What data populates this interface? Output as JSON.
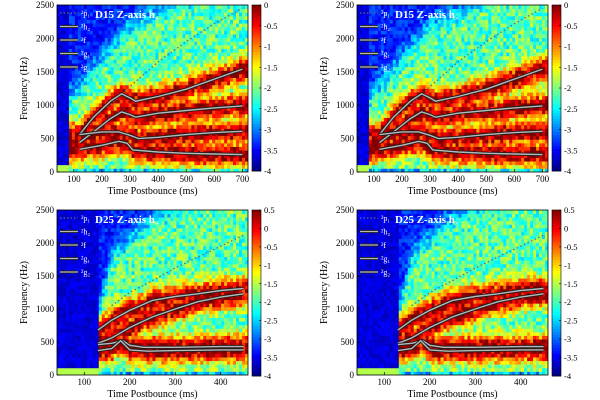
{
  "chart_data": [
    {
      "type": "heatmap",
      "title": "D15 Z-axis h",
      "title_marker": "+",
      "xlabel": "Time Postbounce (ms)",
      "ylabel": "Frequency (Hz)",
      "xlim": [
        40,
        720
      ],
      "ylim": [
        0,
        2500
      ],
      "xticks": [
        100,
        200,
        300,
        400,
        500,
        600,
        700
      ],
      "yticks": [
        0,
        500,
        1000,
        1500,
        2000,
        2500
      ],
      "colorbar": {
        "range": [
          -4,
          0
        ],
        "ticks": [
          0,
          -0.5,
          -1,
          -1.5,
          -2,
          -2.5,
          -3,
          -3.5,
          -4
        ]
      },
      "legend": [
        "²p₁",
        "²h₂",
        "²f",
        "²g₁",
        "²g₂"
      ],
      "series": [
        {
          "legend": 0,
          "color": "#6b6b6b",
          "style": "dotted",
          "x": [
            230,
            300,
            400,
            500,
            600,
            700
          ],
          "y": [
            1000,
            1280,
            1650,
            1950,
            2220,
            2450
          ]
        },
        {
          "legend": 1,
          "color": "#b8b8b8",
          "style": "solid",
          "x": [
            120,
            170,
            230,
            270,
            300,
            320,
            400,
            500,
            600,
            700
          ],
          "y": [
            560,
            820,
            1060,
            1170,
            1110,
            1060,
            1130,
            1240,
            1390,
            1540
          ]
        },
        {
          "legend": 2,
          "color": "#b8b8b8",
          "style": "solid",
          "x": [
            120,
            170,
            230,
            270,
            300,
            320,
            400,
            500,
            600,
            700
          ],
          "y": [
            440,
            600,
            800,
            900,
            860,
            820,
            880,
            920,
            960,
            990
          ]
        },
        {
          "legend": 3,
          "color": "#b8b8b8",
          "style": "solid",
          "x": [
            120,
            200,
            260,
            300,
            330,
            400,
            500,
            600,
            700
          ],
          "y": [
            560,
            600,
            600,
            550,
            500,
            520,
            560,
            590,
            610
          ]
        },
        {
          "legend": 4,
          "color": "#b8b8b8",
          "style": "solid",
          "x": [
            120,
            200,
            260,
            290,
            310,
            400,
            500,
            600,
            700
          ],
          "y": [
            340,
            400,
            460,
            430,
            330,
            300,
            280,
            270,
            260
          ]
        }
      ]
    },
    {
      "type": "heatmap",
      "title": "D15 Z-axis h",
      "title_marker": "×",
      "xlabel": "Time Postbounce (ms)",
      "ylabel": "Frequency (Hz)",
      "xlim": [
        40,
        720
      ],
      "ylim": [
        0,
        2500
      ],
      "xticks": [
        100,
        200,
        300,
        400,
        500,
        600,
        700
      ],
      "yticks": [
        0,
        500,
        1000,
        1500,
        2000,
        2500
      ],
      "colorbar": {
        "range": [
          -4,
          0
        ],
        "ticks": [
          0,
          -0.5,
          -1,
          -1.5,
          -2,
          -2.5,
          -3,
          -3.5,
          -4
        ]
      },
      "legend": [
        "²p₁",
        "²h₂",
        "²f",
        "²g₁",
        "²g₂"
      ],
      "series": [
        {
          "legend": 0,
          "color": "#6b6b6b",
          "style": "dotted",
          "x": [
            230,
            300,
            400,
            500,
            600,
            700
          ],
          "y": [
            1000,
            1280,
            1650,
            1950,
            2220,
            2450
          ]
        },
        {
          "legend": 1,
          "color": "#b8b8b8",
          "style": "solid",
          "x": [
            120,
            170,
            230,
            270,
            300,
            320,
            400,
            500,
            600,
            700
          ],
          "y": [
            560,
            820,
            1060,
            1170,
            1110,
            1060,
            1130,
            1240,
            1390,
            1540
          ]
        },
        {
          "legend": 2,
          "color": "#b8b8b8",
          "style": "solid",
          "x": [
            120,
            170,
            230,
            270,
            300,
            320,
            400,
            500,
            600,
            700
          ],
          "y": [
            440,
            600,
            800,
            900,
            860,
            820,
            880,
            920,
            960,
            990
          ]
        },
        {
          "legend": 3,
          "color": "#b8b8b8",
          "style": "solid",
          "x": [
            120,
            200,
            260,
            300,
            330,
            400,
            500,
            600,
            700
          ],
          "y": [
            560,
            600,
            600,
            550,
            500,
            520,
            560,
            590,
            610
          ]
        },
        {
          "legend": 4,
          "color": "#b8b8b8",
          "style": "solid",
          "x": [
            120,
            200,
            260,
            290,
            310,
            400,
            500,
            600,
            700
          ],
          "y": [
            340,
            400,
            460,
            430,
            330,
            300,
            280,
            270,
            260
          ]
        }
      ]
    },
    {
      "type": "heatmap",
      "title": "D25 Z-axis h",
      "title_marker": "+",
      "xlabel": "Time Postbounce (ms)",
      "ylabel": "Frequency (Hz)",
      "xlim": [
        40,
        460
      ],
      "ylim": [
        0,
        2500
      ],
      "xticks": [
        100,
        200,
        300,
        400
      ],
      "yticks": [
        0,
        500,
        1000,
        1500,
        2000,
        2500
      ],
      "colorbar": {
        "range": [
          -4,
          0.5
        ],
        "ticks": [
          0.5,
          0,
          -0.5,
          -1,
          -1.5,
          -2,
          -2.5,
          -3,
          -3.5,
          -4
        ]
      },
      "legend": [
        "²p₁",
        "²h₂",
        "²f",
        "²g₁",
        "²g₂"
      ],
      "series": [
        {
          "legend": 0,
          "color": "#6b6b6b",
          "style": "dotted",
          "x": [
            160,
            200,
            250,
            300,
            350,
            400,
            450
          ],
          "y": [
            1050,
            1250,
            1430,
            1620,
            1790,
            1950,
            2120
          ]
        },
        {
          "legend": 1,
          "color": "#b8b8b8",
          "style": "solid",
          "x": [
            130,
            160,
            200,
            250,
            300,
            350,
            400,
            450
          ],
          "y": [
            680,
            830,
            980,
            1130,
            1190,
            1230,
            1280,
            1310
          ]
        },
        {
          "legend": 2,
          "color": "#b8b8b8",
          "style": "solid",
          "x": [
            130,
            160,
            200,
            250,
            300,
            350,
            400,
            450
          ],
          "y": [
            480,
            560,
            720,
            880,
            1000,
            1110,
            1180,
            1230
          ]
        },
        {
          "legend": 3,
          "color": "#b8b8b8",
          "style": "solid",
          "x": [
            130,
            160,
            185,
            200,
            230,
            300,
            400,
            450
          ],
          "y": [
            460,
            480,
            520,
            450,
            420,
            420,
            430,
            430
          ]
        },
        {
          "legend": 4,
          "color": "#b8b8b8",
          "style": "solid",
          "x": [
            130,
            160,
            180,
            200,
            240,
            300,
            400,
            450
          ],
          "y": [
            370,
            400,
            520,
            380,
            360,
            370,
            380,
            380
          ]
        }
      ]
    },
    {
      "type": "heatmap",
      "title": "D25 Z-axis h",
      "title_marker": "×",
      "xlabel": "Time Postbounce (ms)",
      "ylabel": "Frequency (Hz)",
      "xlim": [
        40,
        460
      ],
      "ylim": [
        0,
        2500
      ],
      "xticks": [
        100,
        200,
        300,
        400
      ],
      "yticks": [
        0,
        500,
        1000,
        1500,
        2000,
        2500
      ],
      "colorbar": {
        "range": [
          -4,
          0.5
        ],
        "ticks": [
          0.5,
          0,
          -0.5,
          -1,
          -1.5,
          -2,
          -2.5,
          -3,
          -3.5,
          -4
        ]
      },
      "legend": [
        "²p₁",
        "²h₂",
        "²f",
        "²g₁",
        "²g₂"
      ],
      "series": [
        {
          "legend": 0,
          "color": "#6b6b6b",
          "style": "dotted",
          "x": [
            160,
            200,
            250,
            300,
            350,
            400,
            450
          ],
          "y": [
            1050,
            1250,
            1430,
            1620,
            1790,
            1950,
            2120
          ]
        },
        {
          "legend": 1,
          "color": "#b8b8b8",
          "style": "solid",
          "x": [
            130,
            160,
            200,
            250,
            300,
            350,
            400,
            450
          ],
          "y": [
            680,
            830,
            980,
            1130,
            1190,
            1230,
            1280,
            1310
          ]
        },
        {
          "legend": 2,
          "color": "#b8b8b8",
          "style": "solid",
          "x": [
            130,
            160,
            200,
            250,
            300,
            350,
            400,
            450
          ],
          "y": [
            480,
            560,
            720,
            880,
            1000,
            1110,
            1180,
            1230
          ]
        },
        {
          "legend": 3,
          "color": "#b8b8b8",
          "style": "solid",
          "x": [
            130,
            160,
            185,
            200,
            230,
            300,
            400,
            450
          ],
          "y": [
            460,
            480,
            520,
            450,
            420,
            420,
            430,
            430
          ]
        },
        {
          "legend": 4,
          "color": "#b8b8b8",
          "style": "solid",
          "x": [
            130,
            160,
            180,
            200,
            240,
            300,
            400,
            450
          ],
          "y": [
            370,
            400,
            520,
            380,
            360,
            370,
            380,
            380
          ]
        }
      ]
    }
  ]
}
